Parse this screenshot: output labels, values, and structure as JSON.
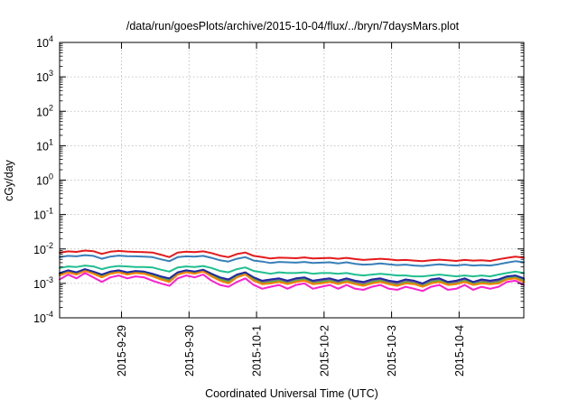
{
  "chart_data": {
    "type": "line",
    "title": "/data/run/goesPlots/archive/2015-10-04/flux/../bryn/7daysMars.plot",
    "xlabel": "Coordinated Universal Time (UTC)",
    "ylabel": "cGy/day",
    "yscale": "log",
    "ylim": [
      0.0001,
      10000
    ],
    "xlim": [
      "2015-09-28T02:00",
      "2015-10-04T23:00"
    ],
    "grid": true,
    "x_ticks": [
      {
        "t": "2015-09-29T00:00",
        "label": "2015-9-29"
      },
      {
        "t": "2015-09-30T00:00",
        "label": "2015-9-30"
      },
      {
        "t": "2015-10-01T00:00",
        "label": "2015-10-1"
      },
      {
        "t": "2015-10-02T00:00",
        "label": "2015-10-2"
      },
      {
        "t": "2015-10-03T00:00",
        "label": "2015-10-3"
      },
      {
        "t": "2015-10-04T00:00",
        "label": "2015-10-4"
      }
    ],
    "y_ticks": [
      {
        "v": 0.0001,
        "base": "10",
        "exp": "-4"
      },
      {
        "v": 0.001,
        "base": "10",
        "exp": "-3"
      },
      {
        "v": 0.01,
        "base": "10",
        "exp": "-2"
      },
      {
        "v": 0.1,
        "base": "10",
        "exp": "-1"
      },
      {
        "v": 1,
        "base": "10",
        "exp": "0"
      },
      {
        "v": 10,
        "base": "10",
        "exp": "1"
      },
      {
        "v": 100,
        "base": "10",
        "exp": "2"
      },
      {
        "v": 1000,
        "base": "10",
        "exp": "3"
      },
      {
        "v": 10000,
        "base": "10",
        "exp": "4"
      }
    ],
    "x": [
      "2015-09-28T02:00",
      "2015-09-28T05:00",
      "2015-09-28T08:00",
      "2015-09-28T11:00",
      "2015-09-28T14:00",
      "2015-09-28T17:00",
      "2015-09-28T20:00",
      "2015-09-28T23:00",
      "2015-09-29T02:00",
      "2015-09-29T05:00",
      "2015-09-29T08:00",
      "2015-09-29T11:00",
      "2015-09-29T14:00",
      "2015-09-29T17:00",
      "2015-09-29T20:00",
      "2015-09-29T23:00",
      "2015-09-30T02:00",
      "2015-09-30T05:00",
      "2015-09-30T08:00",
      "2015-09-30T11:00",
      "2015-09-30T14:00",
      "2015-09-30T17:00",
      "2015-09-30T20:00",
      "2015-09-30T23:00",
      "2015-10-01T02:00",
      "2015-10-01T05:00",
      "2015-10-01T08:00",
      "2015-10-01T11:00",
      "2015-10-01T14:00",
      "2015-10-01T17:00",
      "2015-10-01T20:00",
      "2015-10-01T23:00",
      "2015-10-02T02:00",
      "2015-10-02T05:00",
      "2015-10-02T08:00",
      "2015-10-02T11:00",
      "2015-10-02T14:00",
      "2015-10-02T17:00",
      "2015-10-02T20:00",
      "2015-10-02T23:00",
      "2015-10-03T02:00",
      "2015-10-03T05:00",
      "2015-10-03T08:00",
      "2015-10-03T11:00",
      "2015-10-03T14:00",
      "2015-10-03T17:00",
      "2015-10-03T20:00",
      "2015-10-03T23:00",
      "2015-10-04T02:00",
      "2015-10-04T05:00",
      "2015-10-04T08:00",
      "2015-10-04T11:00",
      "2015-10-04T14:00",
      "2015-10-04T17:00",
      "2015-10-04T20:00",
      "2015-10-04T23:00"
    ],
    "series": [
      {
        "color": "#e41a1c",
        "values": [
          0.0078,
          0.0085,
          0.0082,
          0.009,
          0.0086,
          0.0072,
          0.0083,
          0.0088,
          0.0084,
          0.0082,
          0.0081,
          0.0079,
          0.0068,
          0.0058,
          0.0079,
          0.0083,
          0.0081,
          0.0085,
          0.0076,
          0.0064,
          0.0058,
          0.0071,
          0.0079,
          0.0063,
          0.0058,
          0.0053,
          0.0056,
          0.0055,
          0.0054,
          0.0057,
          0.0053,
          0.0054,
          0.0055,
          0.0052,
          0.0055,
          0.0051,
          0.0048,
          0.005,
          0.0052,
          0.005,
          0.0047,
          0.0048,
          0.0046,
          0.0044,
          0.0047,
          0.0049,
          0.0047,
          0.0045,
          0.0048,
          0.0046,
          0.0047,
          0.0045,
          0.005,
          0.0055,
          0.006,
          0.0056
        ]
      },
      {
        "color": "#377eb8",
        "values": [
          0.0058,
          0.0063,
          0.0061,
          0.0066,
          0.0063,
          0.0052,
          0.006,
          0.0064,
          0.0062,
          0.0061,
          0.006,
          0.0058,
          0.005,
          0.0044,
          0.0058,
          0.0061,
          0.006,
          0.0063,
          0.0055,
          0.0047,
          0.0043,
          0.0052,
          0.0058,
          0.0046,
          0.0043,
          0.0039,
          0.0042,
          0.0041,
          0.004,
          0.0042,
          0.0039,
          0.004,
          0.0041,
          0.0038,
          0.0041,
          0.0037,
          0.0035,
          0.0036,
          0.0038,
          0.0036,
          0.0034,
          0.0035,
          0.0033,
          0.0032,
          0.0034,
          0.0036,
          0.0034,
          0.0033,
          0.0035,
          0.0033,
          0.0034,
          0.0033,
          0.0036,
          0.004,
          0.0044,
          0.0041
        ]
      },
      {
        "color": "#1fbf8f",
        "values": [
          0.0028,
          0.0031,
          0.003,
          0.0033,
          0.0031,
          0.0026,
          0.003,
          0.0032,
          0.0031,
          0.003,
          0.003,
          0.0029,
          0.0025,
          0.0022,
          0.0029,
          0.0031,
          0.003,
          0.0032,
          0.0028,
          0.0023,
          0.0021,
          0.0026,
          0.0029,
          0.0023,
          0.0021,
          0.0019,
          0.0021,
          0.002,
          0.002,
          0.0021,
          0.0019,
          0.002,
          0.002,
          0.0019,
          0.002,
          0.0018,
          0.0017,
          0.0018,
          0.0019,
          0.0018,
          0.0017,
          0.0017,
          0.0016,
          0.0016,
          0.0017,
          0.0018,
          0.0017,
          0.0016,
          0.0017,
          0.0016,
          0.0017,
          0.0016,
          0.0018,
          0.002,
          0.0022,
          0.002
        ]
      },
      {
        "color": "#984ea3",
        "values": [
          0.0019,
          0.0023,
          0.002,
          0.0025,
          0.0021,
          0.0017,
          0.0021,
          0.0023,
          0.002,
          0.0022,
          0.0021,
          0.0018,
          0.0015,
          0.0013,
          0.002,
          0.0023,
          0.0021,
          0.0024,
          0.0018,
          0.0014,
          0.0012,
          0.0017,
          0.002,
          0.0014,
          0.0011,
          0.0012,
          0.0013,
          0.0011,
          0.0013,
          0.0014,
          0.0011,
          0.0012,
          0.0013,
          0.0011,
          0.0013,
          0.0011,
          0.001,
          0.0012,
          0.0013,
          0.0011,
          0.001,
          0.0012,
          0.0011,
          0.0009,
          0.0012,
          0.0013,
          0.001,
          0.0011,
          0.0013,
          0.001,
          0.0012,
          0.0011,
          0.0012,
          0.0015,
          0.0016,
          0.0013
        ]
      },
      {
        "color": "#4daf4a",
        "values": [
          0.0018,
          0.0022,
          0.0019,
          0.0024,
          0.002,
          0.0016,
          0.002,
          0.0022,
          0.0019,
          0.0021,
          0.002,
          0.0017,
          0.0014,
          0.0012,
          0.0019,
          0.0022,
          0.002,
          0.0023,
          0.0017,
          0.0013,
          0.0011,
          0.0016,
          0.0019,
          0.0013,
          0.001,
          0.0011,
          0.0012,
          0.001,
          0.0012,
          0.0013,
          0.001,
          0.0011,
          0.0012,
          0.001,
          0.0012,
          0.001,
          0.0009,
          0.0011,
          0.0012,
          0.001,
          0.0009,
          0.0011,
          0.001,
          0.00085,
          0.0011,
          0.0012,
          0.00095,
          0.001,
          0.0012,
          0.00095,
          0.0011,
          0.001,
          0.0011,
          0.0014,
          0.0015,
          0.0012
        ]
      },
      {
        "color": "#ff7f00",
        "values": [
          0.0017,
          0.0021,
          0.0018,
          0.0023,
          0.0019,
          0.0015,
          0.0019,
          0.0021,
          0.0018,
          0.002,
          0.0019,
          0.0016,
          0.0013,
          0.0011,
          0.0018,
          0.0021,
          0.0019,
          0.0022,
          0.0016,
          0.0012,
          0.001,
          0.0015,
          0.0018,
          0.0012,
          0.00095,
          0.001,
          0.0011,
          0.00095,
          0.0011,
          0.0012,
          0.00095,
          0.001,
          0.0011,
          0.00095,
          0.0011,
          0.00095,
          0.00085,
          0.001,
          0.0011,
          0.00095,
          0.00085,
          0.001,
          0.00095,
          0.0008,
          0.001,
          0.0011,
          0.0009,
          0.00095,
          0.0011,
          0.0009,
          0.001,
          0.00095,
          0.001,
          0.0013,
          0.0014,
          0.0011
        ]
      },
      {
        "color": "#1f2aa0",
        "values": [
          0.002,
          0.0024,
          0.0021,
          0.0026,
          0.0022,
          0.0018,
          0.0022,
          0.0024,
          0.0021,
          0.0023,
          0.0022,
          0.0019,
          0.0016,
          0.0014,
          0.0021,
          0.0024,
          0.0022,
          0.0025,
          0.0019,
          0.0015,
          0.0013,
          0.0018,
          0.0021,
          0.0015,
          0.0012,
          0.0013,
          0.0014,
          0.0012,
          0.0014,
          0.0015,
          0.0012,
          0.0013,
          0.0014,
          0.0012,
          0.0014,
          0.0012,
          0.0011,
          0.0013,
          0.0014,
          0.0012,
          0.0011,
          0.0013,
          0.0012,
          0.001,
          0.0013,
          0.0014,
          0.0011,
          0.0012,
          0.0014,
          0.0011,
          0.0013,
          0.0012,
          0.0013,
          0.0016,
          0.0017,
          0.0014
        ]
      },
      {
        "color": "#ff1fd0",
        "values": [
          0.0013,
          0.0018,
          0.0014,
          0.002,
          0.0015,
          0.0011,
          0.0015,
          0.0017,
          0.0014,
          0.0016,
          0.0015,
          0.0012,
          0.001,
          0.00085,
          0.0014,
          0.0017,
          0.0015,
          0.0018,
          0.0012,
          0.0009,
          0.0008,
          0.0011,
          0.0014,
          0.0009,
          0.0007,
          0.0008,
          0.0009,
          0.0007,
          0.0009,
          0.001,
          0.0007,
          0.0008,
          0.0009,
          0.0007,
          0.0009,
          0.0007,
          0.00065,
          0.0008,
          0.0009,
          0.0007,
          0.00065,
          0.0008,
          0.0007,
          0.0006,
          0.0008,
          0.0009,
          0.00065,
          0.0007,
          0.0009,
          0.00065,
          0.0008,
          0.0007,
          0.0008,
          0.0011,
          0.0012,
          0.0009
        ]
      }
    ]
  }
}
